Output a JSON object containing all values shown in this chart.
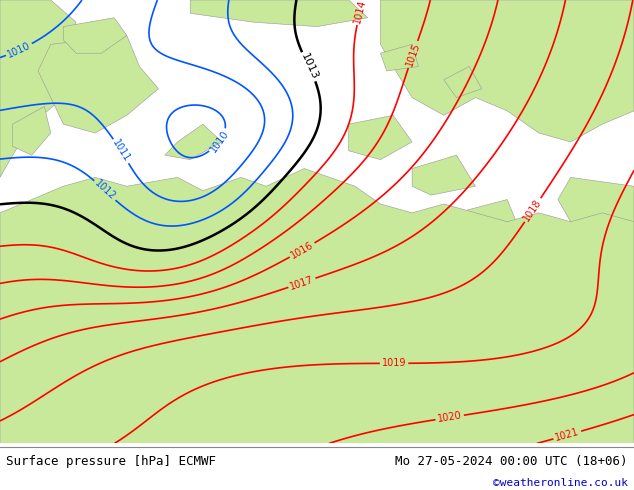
{
  "title_left": "Surface pressure [hPa] ECMWF",
  "title_right": "Mo 27-05-2024 00:00 UTC (18+06)",
  "credit": "©weatheronline.co.uk",
  "background_color": "#ffffff",
  "sea_color": "#d0d0d0",
  "land_green": "#c8e89a",
  "fig_width": 6.34,
  "fig_height": 4.9,
  "dpi": 100,
  "blue_color": "#0055ff",
  "black_color": "#000000",
  "red_color": "#ff0000",
  "font_size_bottom": 9,
  "font_size_credit": 8,
  "credit_color": "#0000cc"
}
